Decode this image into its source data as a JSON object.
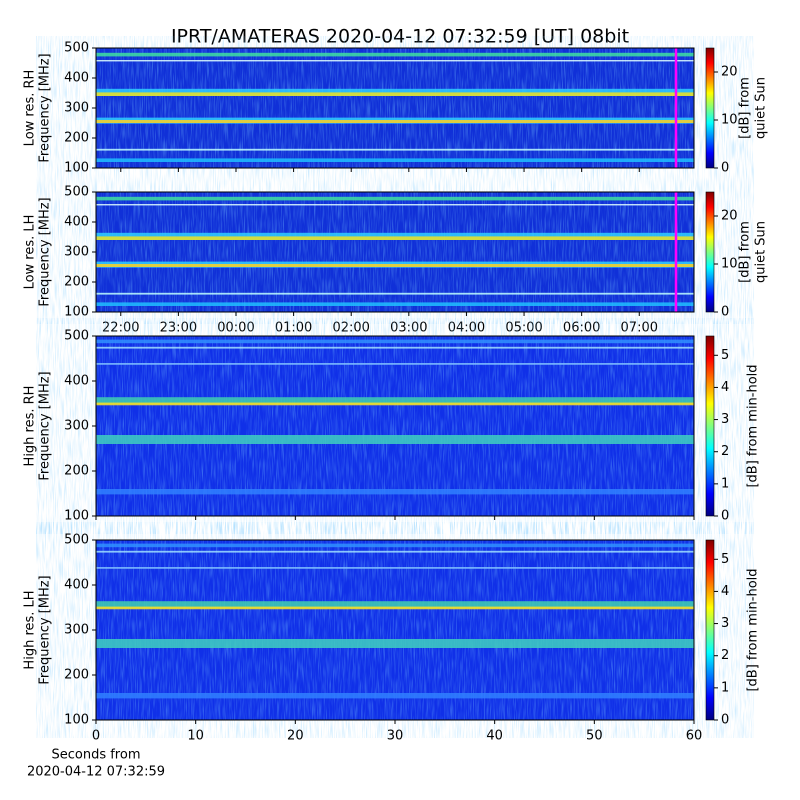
{
  "title": "IPRT/AMATERAS 2020-04-12 07:32:59 [UT]   08bit",
  "chart_data": [
    {
      "type": "spectrogram",
      "ylabel": [
        "Low res. RH",
        "Frequency [MHz]"
      ],
      "ylim": [
        100,
        500
      ],
      "yticks": [
        100,
        200,
        300,
        400,
        500
      ],
      "colorbar_label": [
        "[dB] from",
        "quiet Sun"
      ],
      "clim": [
        0,
        25
      ],
      "cticks": [
        0,
        10,
        20
      ]
    },
    {
      "type": "spectrogram",
      "ylabel": [
        "Low res. LH",
        "Frequency [MHz]"
      ],
      "ylim": [
        100,
        500
      ],
      "yticks": [
        100,
        200,
        300,
        400,
        500
      ],
      "xlim": [
        21.57,
        31.95
      ],
      "xticks": [
        {
          "value": 22,
          "label": "22:00"
        },
        {
          "value": 23,
          "label": "23:00"
        },
        {
          "value": 24,
          "label": "00:00"
        },
        {
          "value": 25,
          "label": "01:00"
        },
        {
          "value": 26,
          "label": "02:00"
        },
        {
          "value": 27,
          "label": "03:00"
        },
        {
          "value": 28,
          "label": "04:00"
        },
        {
          "value": 29,
          "label": "05:00"
        },
        {
          "value": 30,
          "label": "06:00"
        },
        {
          "value": 31,
          "label": "07:00"
        }
      ],
      "colorbar_label": [
        "[dB] from",
        "quiet Sun"
      ],
      "clim": [
        0,
        25
      ],
      "cticks": [
        0,
        10,
        20
      ]
    },
    {
      "type": "spectrogram",
      "ylabel": [
        "High res. RH",
        "Frequency [MHz]"
      ],
      "ylim": [
        100,
        500
      ],
      "yticks": [
        100,
        200,
        300,
        400,
        500
      ],
      "colorbar_label": [
        "[dB] from min-hold"
      ],
      "clim": [
        0,
        5.6
      ],
      "cticks": [
        0,
        1,
        2,
        3,
        4,
        5
      ]
    },
    {
      "type": "spectrogram",
      "ylabel": [
        "High res. LH",
        "Frequency [MHz]"
      ],
      "ylim": [
        100,
        500
      ],
      "yticks": [
        100,
        200,
        300,
        400,
        500
      ],
      "xlim": [
        0,
        60
      ],
      "xticks": [
        0,
        10,
        20,
        30,
        40,
        50,
        60
      ],
      "xlabel": [
        "Seconds from",
        "2020-04-12 07:32:59"
      ],
      "colorbar_label": [
        "[dB] from min-hold"
      ],
      "clim": [
        0,
        5.6
      ],
      "cticks": [
        0,
        1,
        2,
        3,
        4,
        5
      ]
    }
  ]
}
